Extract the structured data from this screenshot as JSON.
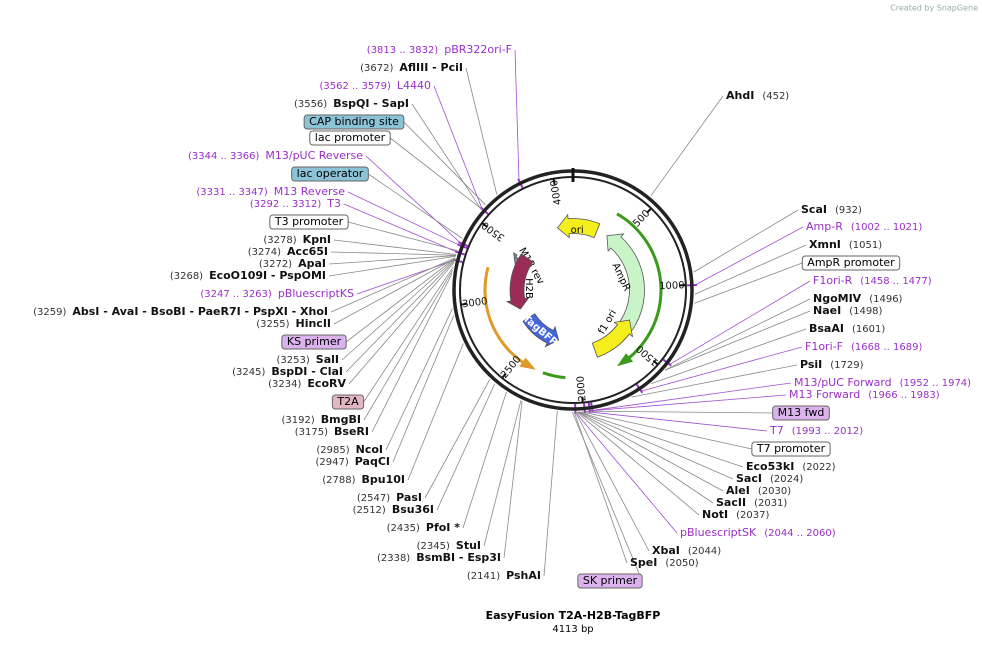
{
  "header": {
    "watermark": "Created by SnapGene"
  },
  "map": {
    "title": "EasyFusion T2A-H2B-TagBFP",
    "length": "4113 bp",
    "ticks": [
      500,
      1000,
      1500,
      2000,
      2500,
      3000,
      3500,
      4000
    ],
    "features": [
      {
        "name": "ori"
      },
      {
        "name": "AmpR"
      },
      {
        "name": "f1 ori"
      },
      {
        "name": "M13 rev"
      },
      {
        "name": "H2B"
      },
      {
        "name": "TagBFP"
      }
    ],
    "labels": [
      {
        "pos": "(3813 .. 3832)",
        "name": "pBR322ori-F",
        "kind": "primer"
      },
      {
        "pos": "(3672)",
        "name": "AflIII  - PciI",
        "kind": "enzyme"
      },
      {
        "pos": "(3562 .. 3579)",
        "name": "L4440",
        "kind": "primer"
      },
      {
        "pos": "(3556)",
        "name": "BspQI  - SapI",
        "kind": "enzyme"
      },
      {
        "name": "CAP binding site",
        "kind": "box",
        "fill": "#8cc3d6"
      },
      {
        "name": "lac promoter",
        "kind": "box",
        "fill": "#ffffff"
      },
      {
        "pos": "(3344 .. 3366)",
        "name": "M13/pUC Reverse",
        "kind": "primer"
      },
      {
        "name": "lac operator",
        "kind": "box",
        "fill": "#8cc3d6"
      },
      {
        "pos": "(3331 .. 3347)",
        "name": "M13 Reverse",
        "kind": "primer"
      },
      {
        "pos": "(3292 .. 3312)",
        "name": "T3",
        "kind": "primer"
      },
      {
        "name": "T3 promoter",
        "kind": "box",
        "fill": "#ffffff"
      },
      {
        "pos": "(3278)",
        "name": "KpnI",
        "kind": "enzyme"
      },
      {
        "pos": "(3274)",
        "name": "Acc65I",
        "kind": "enzyme"
      },
      {
        "pos": "(3272)",
        "name": "ApaI",
        "kind": "enzyme"
      },
      {
        "pos": "(3268)",
        "name": "EcoO109I  - PspOMI",
        "kind": "enzyme"
      },
      {
        "pos": "(3247 .. 3263)",
        "name": "pBluescriptKS",
        "kind": "primer"
      },
      {
        "pos": "(3259)",
        "name": "AbsI  - AvaI  - BsoBI  - PaeR7I  - PspXI  - XhoI",
        "kind": "enzyme"
      },
      {
        "pos": "(3255)",
        "name": "HincII",
        "kind": "enzyme"
      },
      {
        "name": "KS primer",
        "kind": "box",
        "fill": "#dcb2ee"
      },
      {
        "pos": "(3253)",
        "name": "SalI",
        "kind": "enzyme"
      },
      {
        "pos": "(3245)",
        "name": "BspDI  - ClaI",
        "kind": "enzyme"
      },
      {
        "pos": "(3234)",
        "name": "EcoRV",
        "kind": "enzyme"
      },
      {
        "name": "T2A",
        "kind": "box",
        "fill": "#e2b6c2"
      },
      {
        "pos": "(3192)",
        "name": "BmgBI",
        "kind": "enzyme"
      },
      {
        "pos": "(3175)",
        "name": "BseRI",
        "kind": "enzyme"
      },
      {
        "pos": "(2985)",
        "name": "NcoI",
        "kind": "enzyme"
      },
      {
        "pos": "(2947)",
        "name": "PaqCI",
        "kind": "enzyme"
      },
      {
        "pos": "(2788)",
        "name": "Bpu10I",
        "kind": "enzyme"
      },
      {
        "pos": "(2547)",
        "name": "PasI",
        "kind": "enzyme"
      },
      {
        "pos": "(2512)",
        "name": "Bsu36I",
        "kind": "enzyme"
      },
      {
        "pos": "(2435)",
        "name": "PfoI *",
        "kind": "enzyme"
      },
      {
        "pos": "(2345)",
        "name": "StuI",
        "kind": "enzyme"
      },
      {
        "pos": "(2338)",
        "name": "BsmBI  - Esp3I",
        "kind": "enzyme"
      },
      {
        "pos": "(2141)",
        "name": "PshAI",
        "kind": "enzyme"
      },
      {
        "name": "SK primer",
        "kind": "box",
        "fill": "#dcb2ee"
      },
      {
        "pos": "(452)",
        "name": "AhdI",
        "kind": "enzyme"
      },
      {
        "pos": "(932)",
        "name": "ScaI",
        "kind": "enzyme"
      },
      {
        "pos": "(1002 .. 1021)",
        "name": "Amp-R",
        "kind": "primer"
      },
      {
        "pos": "(1051)",
        "name": "XmnI",
        "kind": "enzyme"
      },
      {
        "name": "AmpR promoter",
        "kind": "box",
        "fill": "#ffffff"
      },
      {
        "pos": "(1458 .. 1477)",
        "name": "F1ori-R",
        "kind": "primer"
      },
      {
        "pos": "(1496)",
        "name": "NgoMIV",
        "kind": "enzyme"
      },
      {
        "pos": "(1498)",
        "name": "NaeI",
        "kind": "enzyme"
      },
      {
        "pos": "(1601)",
        "name": "BsaAI",
        "kind": "enzyme"
      },
      {
        "pos": "(1668 .. 1689)",
        "name": "F1ori-F",
        "kind": "primer"
      },
      {
        "pos": "(1729)",
        "name": "PsiI",
        "kind": "enzyme"
      },
      {
        "pos": "(1952 .. 1974)",
        "name": "M13/pUC Forward",
        "kind": "primer"
      },
      {
        "pos": "(1966 .. 1983)",
        "name": "M13 Forward",
        "kind": "primer"
      },
      {
        "name": "M13 fwd",
        "kind": "box",
        "fill": "#dcb2ee"
      },
      {
        "pos": "(1993 .. 2012)",
        "name": "T7",
        "kind": "primer"
      },
      {
        "name": "T7 promoter",
        "kind": "box",
        "fill": "#ffffff"
      },
      {
        "pos": "(2022)",
        "name": "Eco53kI",
        "kind": "enzyme"
      },
      {
        "pos": "(2024)",
        "name": "SacI",
        "kind": "enzyme"
      },
      {
        "pos": "(2030)",
        "name": "AleI",
        "kind": "enzyme"
      },
      {
        "pos": "(2031)",
        "name": "SacII",
        "kind": "enzyme"
      },
      {
        "pos": "(2037)",
        "name": "NotI",
        "kind": "enzyme"
      },
      {
        "pos": "(2044 .. 2060)",
        "name": "pBluescriptSK",
        "kind": "primer"
      },
      {
        "pos": "(2044)",
        "name": "XbaI",
        "kind": "enzyme"
      },
      {
        "pos": "(2050)",
        "name": "SpeI",
        "kind": "enzyme"
      }
    ]
  }
}
